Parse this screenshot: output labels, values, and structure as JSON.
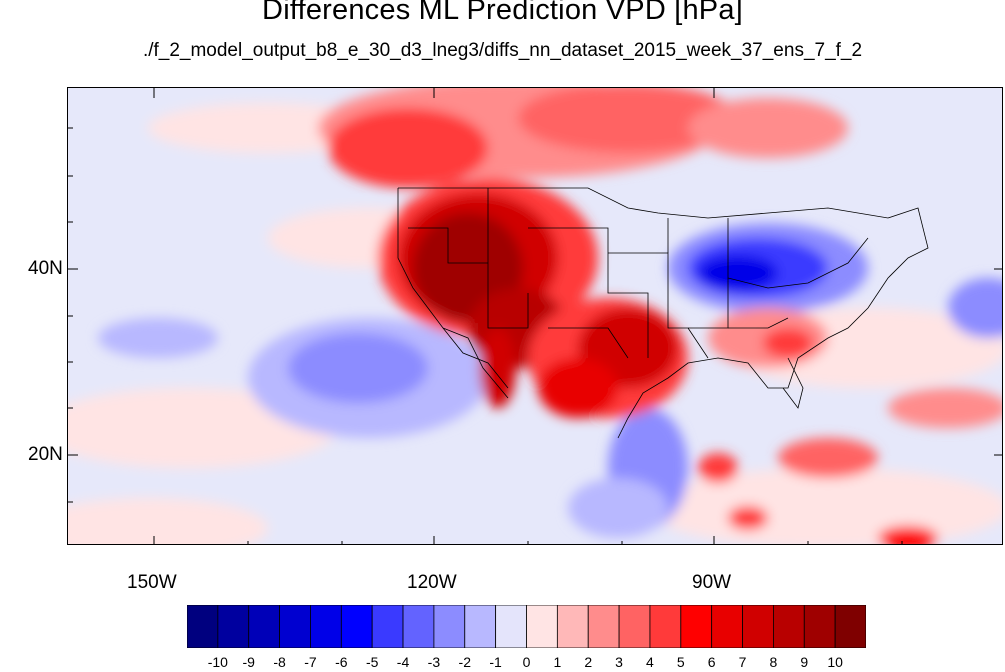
{
  "figure": {
    "title": "Differences ML Prediction VPD [hPa]",
    "subtitle": "./f_2_model_output_b8_e_30_d3_lneg3/diffs_nn_dataset_2015_week_37_ens_7_f_2"
  },
  "axes": {
    "lat_labels": [
      "40N",
      "20N"
    ],
    "lon_labels": [
      "150W",
      "120W",
      "90W"
    ]
  },
  "colorbar": {
    "labels": [
      "-10",
      "-9",
      "-8",
      "-7",
      "-6",
      "-5",
      "-4",
      "-3",
      "-2",
      "-1",
      "0",
      "1",
      "2",
      "3",
      "4",
      "5",
      "6",
      "7",
      "8",
      "9",
      "10"
    ],
    "colors": [
      "#00007f",
      "#00009f",
      "#0000b8",
      "#0000d0",
      "#0000e8",
      "#0000ff",
      "#3a3aff",
      "#6363ff",
      "#8c8cff",
      "#b8b8ff",
      "#e4e4fb",
      "#ffe4e4",
      "#ffb8b8",
      "#ff8c8c",
      "#ff6363",
      "#ff3a3a",
      "#ff0000",
      "#e80000",
      "#d00000",
      "#b80000",
      "#9f0000",
      "#7f0000"
    ]
  },
  "colors": {
    "background_field": "#e6e8fa",
    "ocean_pale_blue": "#e4e4fb",
    "light_red": "#ffb8b8",
    "dark_red": "#9f0000",
    "blue": "#3a3aff"
  }
}
